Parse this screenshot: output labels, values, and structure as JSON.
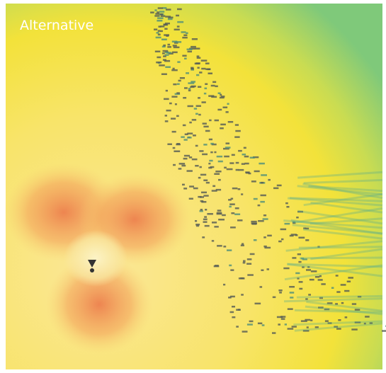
{
  "label": "Alternative"
}
